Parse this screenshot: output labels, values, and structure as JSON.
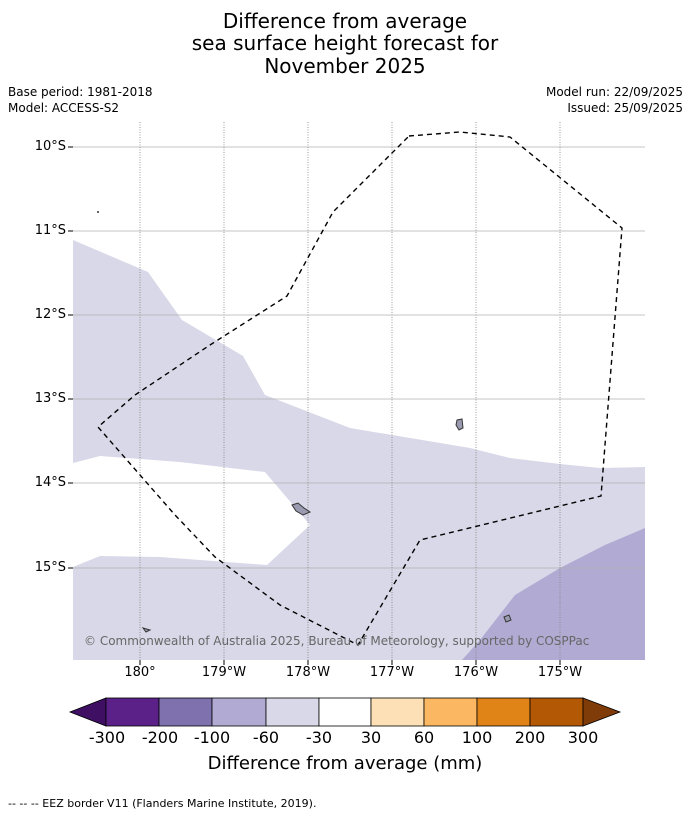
{
  "title": {
    "line1": "Difference from average",
    "line2": "sea surface height forecast for",
    "line3": "November 2025"
  },
  "meta": {
    "base_period": "Base period: 1981-2018",
    "model": "Model: ACCESS-S2",
    "model_run": "Model run: 22/09/2025",
    "issued": "Issued: 25/09/2025"
  },
  "map": {
    "lat_labels": [
      "10°S",
      "11°S",
      "12°S",
      "13°S",
      "14°S",
      "15°S"
    ],
    "lon_labels": [
      "180°",
      "179°W",
      "178°W",
      "177°W",
      "176°W",
      "175°W"
    ],
    "credit": "© Commonwealth of Australia 2025, Bureau of Meteorology, supported by COSPPac",
    "colors": {
      "band_neg_60_30": "#d8d8e8",
      "band_neg_100_60": "#b1aad2",
      "land": "#9a9ab0"
    }
  },
  "colorbar": {
    "ticks": [
      "-300",
      "-200",
      "-100",
      "-60",
      "-30",
      "30",
      "60",
      "100",
      "200",
      "300"
    ],
    "colors": [
      "#3f0f64",
      "#5b2189",
      "#7e71ad",
      "#b1aad2",
      "#d8d8e8",
      "#ffffff",
      "#fde0b6",
      "#fbb762",
      "#e18418",
      "#b35805",
      "#7f3b08"
    ],
    "label": "Difference from average (mm)"
  },
  "footnote": "-- -- -- EEZ border V11 (Flanders Marine Institute, 2019)."
}
